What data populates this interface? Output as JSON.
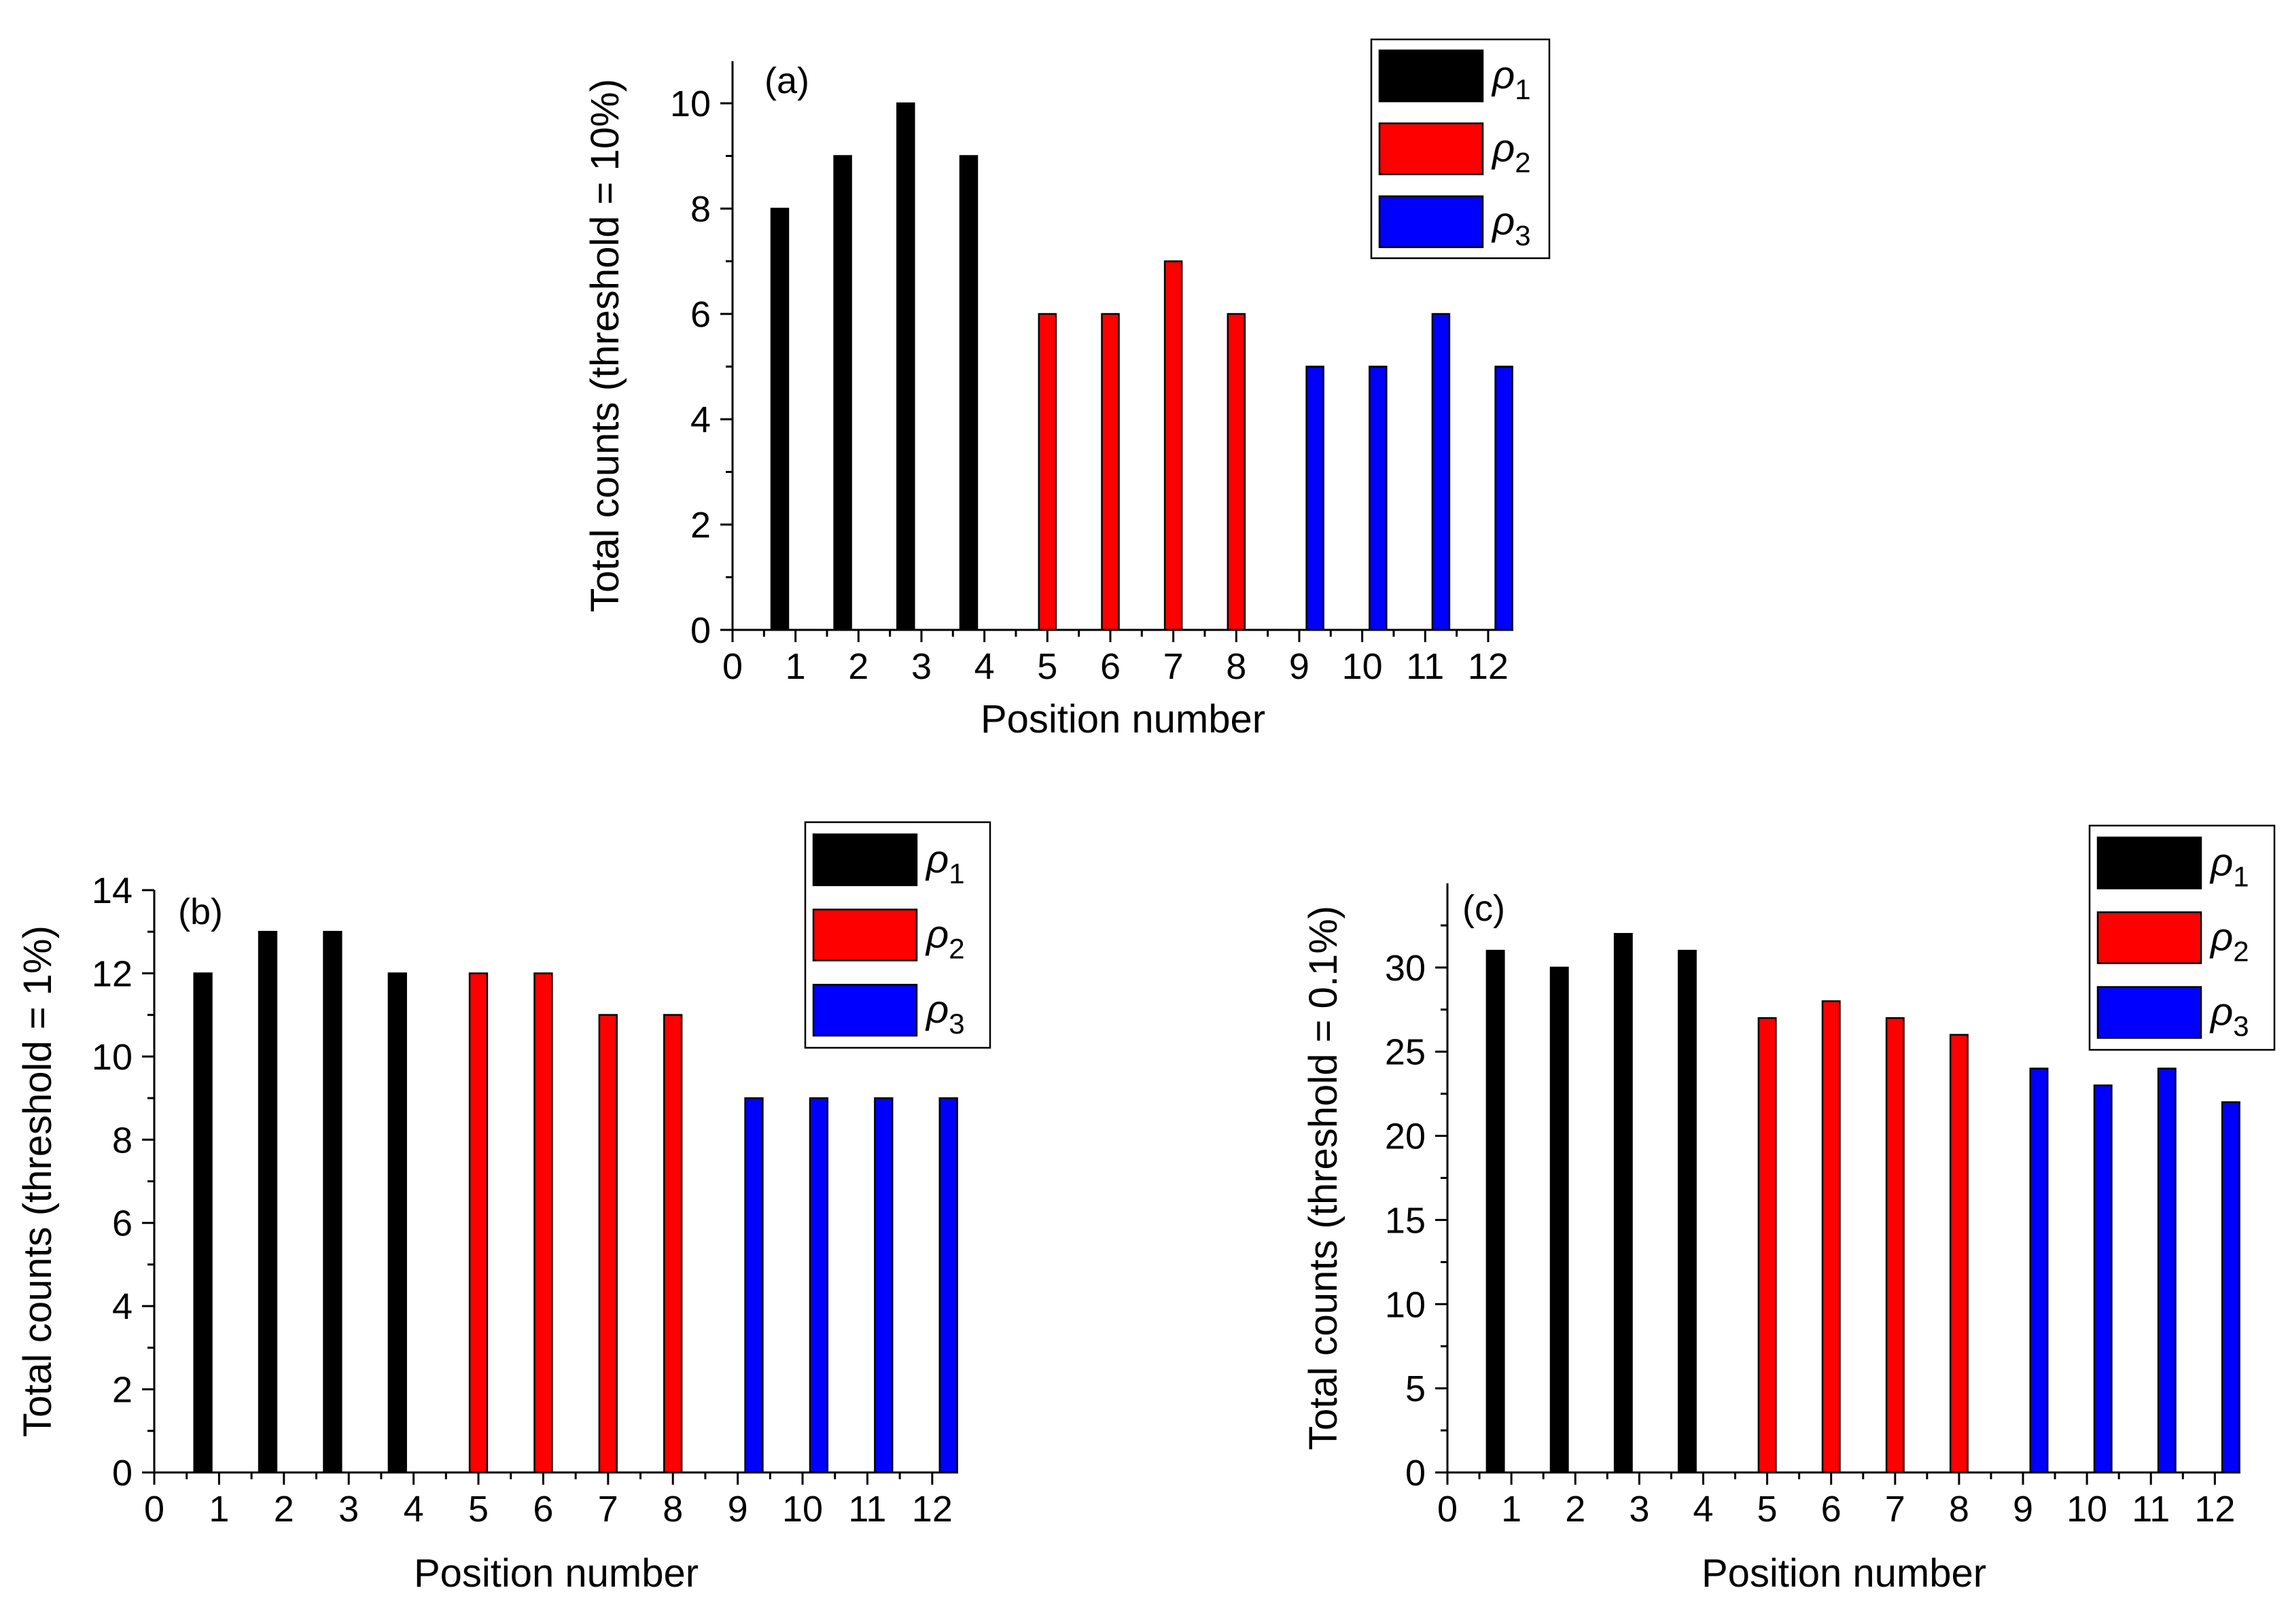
{
  "chart_data": [
    {
      "type": "bar",
      "panel_label": "(a)",
      "ylabel": "Total counts (threshold = 10%)",
      "xlabel": "Position number",
      "xlim": [
        0,
        12.4
      ],
      "ylim": [
        0,
        10.8
      ],
      "xticks": [
        "0",
        "1",
        "2",
        "3",
        "4",
        "5",
        "6",
        "7",
        "8",
        "9",
        "10",
        "11",
        "12"
      ],
      "yticks": [
        "0",
        "2",
        "4",
        "6",
        "8",
        "10"
      ],
      "series": [
        {
          "name": "ρ1",
          "legend_symbol": "ρ",
          "legend_subscript": "1",
          "color": "#000000",
          "x": [
            0.75,
            1.75,
            2.75,
            3.75
          ],
          "values": [
            8,
            9,
            10,
            9
          ]
        },
        {
          "name": "ρ2",
          "legend_symbol": "ρ",
          "legend_subscript": "2",
          "color": "#ff0000",
          "x": [
            5,
            6,
            7,
            8
          ],
          "values": [
            6,
            6,
            7,
            6
          ]
        },
        {
          "name": "ρ3",
          "legend_symbol": "ρ",
          "legend_subscript": "3",
          "color": "#0000ff",
          "x": [
            9.25,
            10.25,
            11.25,
            12.25
          ],
          "values": [
            5,
            5,
            6,
            5
          ]
        }
      ]
    },
    {
      "type": "bar",
      "panel_label": "(b)",
      "ylabel": "Total counts (threshold = 1%)",
      "xlabel": "Position number",
      "xlim": [
        0,
        12.4
      ],
      "ylim": [
        0,
        14
      ],
      "xticks": [
        "0",
        "1",
        "2",
        "3",
        "4",
        "5",
        "6",
        "7",
        "8",
        "9",
        "10",
        "11",
        "12"
      ],
      "yticks": [
        "0",
        "2",
        "4",
        "6",
        "8",
        "10",
        "12",
        "14"
      ],
      "series": [
        {
          "name": "ρ1",
          "legend_symbol": "ρ",
          "legend_subscript": "1",
          "color": "#000000",
          "x": [
            0.75,
            1.75,
            2.75,
            3.75
          ],
          "values": [
            12,
            13,
            13,
            12
          ]
        },
        {
          "name": "ρ2",
          "legend_symbol": "ρ",
          "legend_subscript": "2",
          "color": "#ff0000",
          "x": [
            5,
            6,
            7,
            8
          ],
          "values": [
            12,
            12,
            11,
            11
          ]
        },
        {
          "name": "ρ3",
          "legend_symbol": "ρ",
          "legend_subscript": "3",
          "color": "#0000ff",
          "x": [
            9.25,
            10.25,
            11.25,
            12.25
          ],
          "values": [
            9,
            9,
            9,
            9
          ]
        }
      ]
    },
    {
      "type": "bar",
      "panel_label": "(c)",
      "ylabel": "Total counts (threshold = 0.1%)",
      "xlabel": "Position number",
      "xlim": [
        0,
        12.4
      ],
      "ylim": [
        0,
        35
      ],
      "xticks": [
        "0",
        "1",
        "2",
        "3",
        "4",
        "5",
        "6",
        "7",
        "8",
        "9",
        "10",
        "11",
        "12"
      ],
      "yticks": [
        "0",
        "5",
        "10",
        "15",
        "20",
        "25",
        "30"
      ],
      "series": [
        {
          "name": "ρ1",
          "legend_symbol": "ρ",
          "legend_subscript": "1",
          "color": "#000000",
          "x": [
            0.75,
            1.75,
            2.75,
            3.75
          ],
          "values": [
            31,
            30,
            32,
            31
          ]
        },
        {
          "name": "ρ2",
          "legend_symbol": "ρ",
          "legend_subscript": "2",
          "color": "#ff0000",
          "x": [
            5,
            6,
            7,
            8
          ],
          "values": [
            27,
            28,
            27,
            26
          ]
        },
        {
          "name": "ρ3",
          "legend_symbol": "ρ",
          "legend_subscript": "3",
          "color": "#0000ff",
          "x": [
            9.25,
            10.25,
            11.25,
            12.25
          ],
          "values": [
            24,
            23,
            24,
            22
          ]
        }
      ]
    }
  ]
}
